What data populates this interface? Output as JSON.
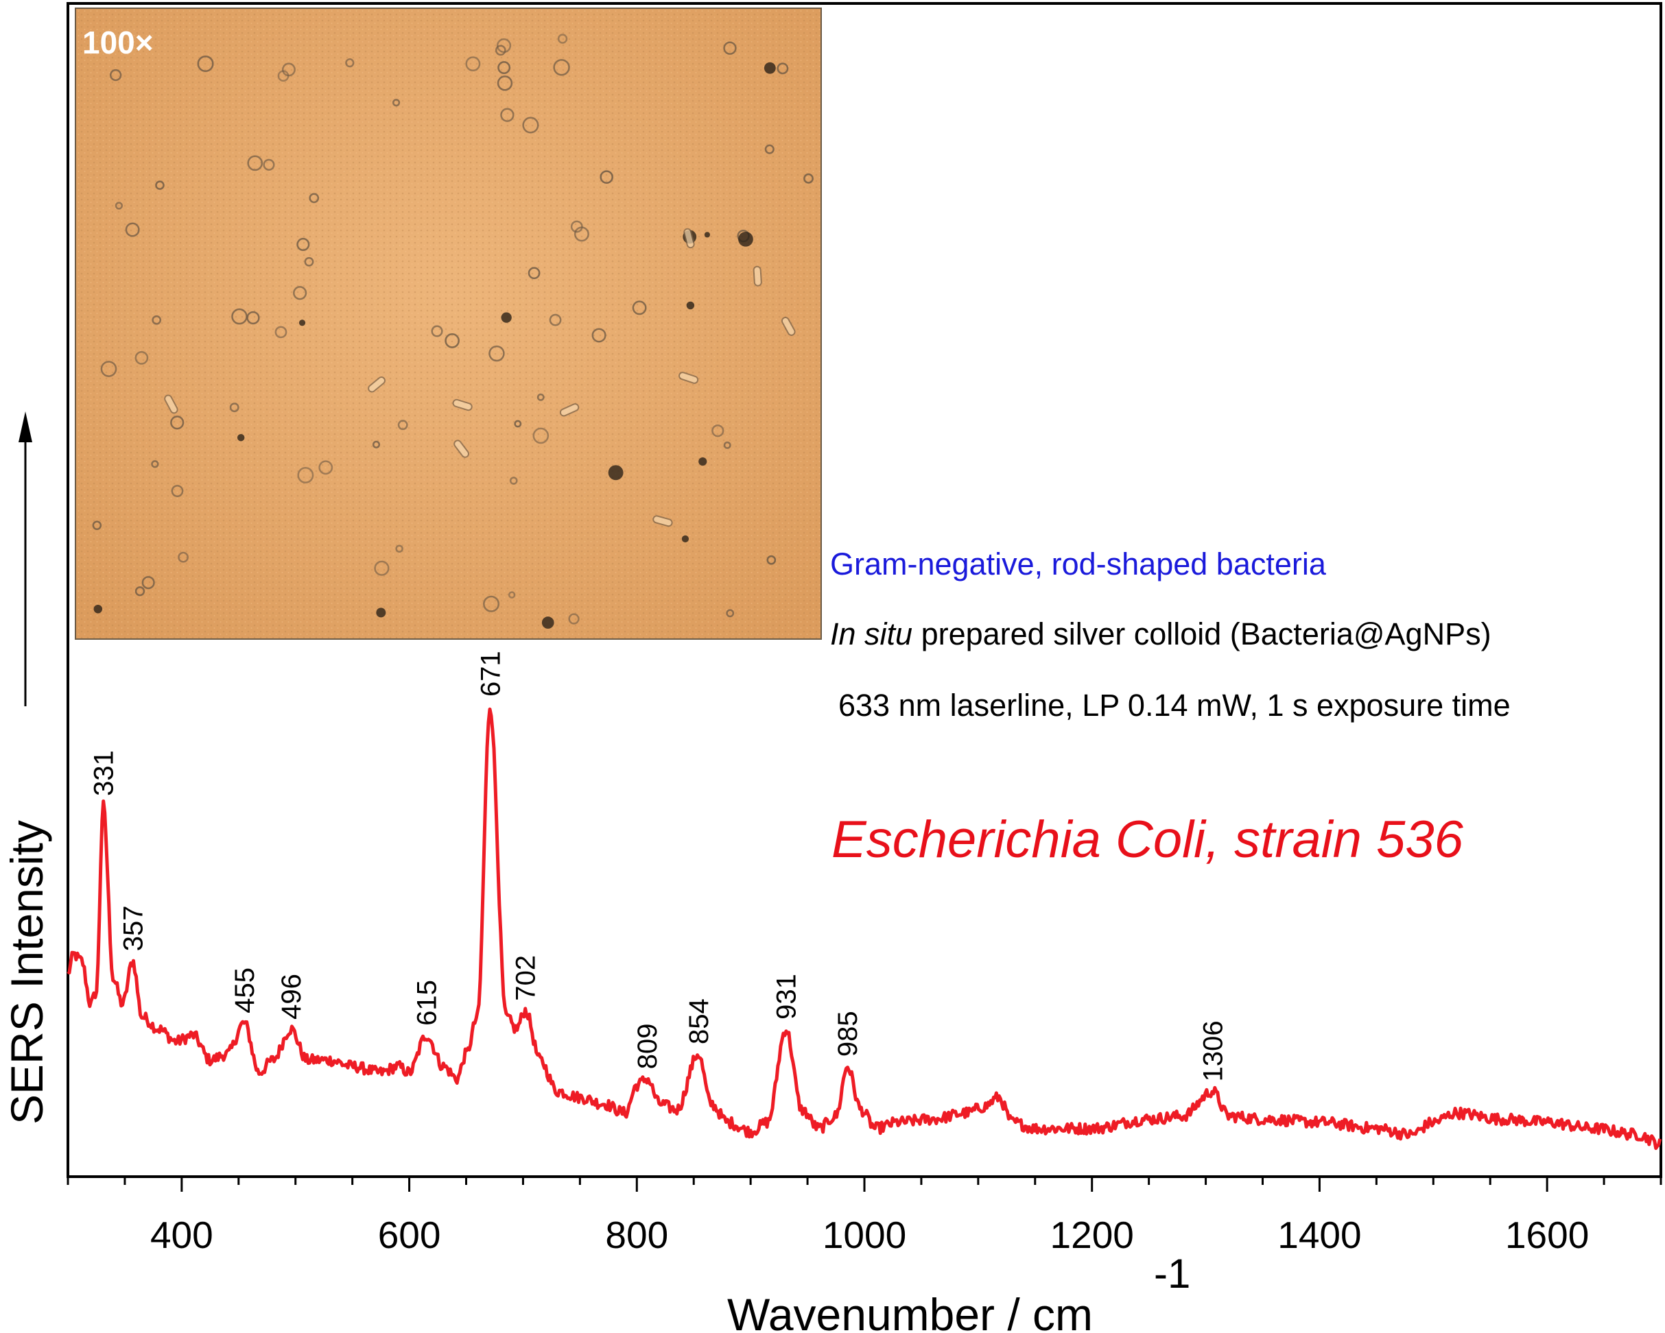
{
  "chart_data": {
    "type": "line",
    "title": "",
    "xlabel": "Wavenumber / cm",
    "xlabel_sup": "-1",
    "ylabel": "SERS Intensity",
    "xlim": [
      300,
      1700
    ],
    "ylim": [
      0,
      1
    ],
    "x_ticks": [
      400,
      600,
      800,
      1000,
      1200,
      1400,
      1600
    ],
    "x_minor_step": 50,
    "grid": false,
    "legend": "none",
    "series": [
      {
        "color": "#ee1c25",
        "anchors": [
          [
            300,
            0.31
          ],
          [
            305,
            0.34
          ],
          [
            312,
            0.33
          ],
          [
            320,
            0.26
          ],
          [
            325,
            0.28
          ],
          [
            331,
            0.58
          ],
          [
            340,
            0.3
          ],
          [
            348,
            0.26
          ],
          [
            357,
            0.33
          ],
          [
            365,
            0.24
          ],
          [
            380,
            0.22
          ],
          [
            395,
            0.2
          ],
          [
            410,
            0.21
          ],
          [
            425,
            0.17
          ],
          [
            440,
            0.18
          ],
          [
            455,
            0.23
          ],
          [
            468,
            0.15
          ],
          [
            480,
            0.17
          ],
          [
            496,
            0.22
          ],
          [
            510,
            0.17
          ],
          [
            530,
            0.17
          ],
          [
            550,
            0.16
          ],
          [
            575,
            0.15
          ],
          [
            590,
            0.16
          ],
          [
            600,
            0.15
          ],
          [
            615,
            0.21
          ],
          [
            630,
            0.16
          ],
          [
            642,
            0.14
          ],
          [
            650,
            0.18
          ],
          [
            660,
            0.24
          ],
          [
            671,
            0.74
          ],
          [
            685,
            0.24
          ],
          [
            694,
            0.22
          ],
          [
            702,
            0.25
          ],
          [
            715,
            0.17
          ],
          [
            730,
            0.12
          ],
          [
            750,
            0.11
          ],
          [
            770,
            0.1
          ],
          [
            790,
            0.085
          ],
          [
            800,
            0.13
          ],
          [
            809,
            0.14
          ],
          [
            820,
            0.1
          ],
          [
            835,
            0.09
          ],
          [
            854,
            0.18
          ],
          [
            865,
            0.1
          ],
          [
            880,
            0.07
          ],
          [
            900,
            0.055
          ],
          [
            915,
            0.07
          ],
          [
            931,
            0.22
          ],
          [
            945,
            0.09
          ],
          [
            960,
            0.06
          ],
          [
            975,
            0.08
          ],
          [
            985,
            0.16
          ],
          [
            997,
            0.09
          ],
          [
            1010,
            0.06
          ],
          [
            1030,
            0.07
          ],
          [
            1060,
            0.075
          ],
          [
            1090,
            0.085
          ],
          [
            1105,
            0.095
          ],
          [
            1118,
            0.11
          ],
          [
            1130,
            0.07
          ],
          [
            1150,
            0.06
          ],
          [
            1200,
            0.06
          ],
          [
            1250,
            0.075
          ],
          [
            1280,
            0.08
          ],
          [
            1306,
            0.12
          ],
          [
            1320,
            0.08
          ],
          [
            1350,
            0.075
          ],
          [
            1400,
            0.07
          ],
          [
            1450,
            0.06
          ],
          [
            1480,
            0.05
          ],
          [
            1500,
            0.07
          ],
          [
            1520,
            0.085
          ],
          [
            1560,
            0.075
          ],
          [
            1600,
            0.07
          ],
          [
            1640,
            0.06
          ],
          [
            1680,
            0.05
          ],
          [
            1700,
            0.035
          ]
        ]
      }
    ],
    "peak_labels": [
      {
        "x": 331,
        "y": 0.58,
        "text": "331"
      },
      {
        "x": 357,
        "y": 0.33,
        "text": "357"
      },
      {
        "x": 455,
        "y": 0.23,
        "text": "455"
      },
      {
        "x": 496,
        "y": 0.22,
        "text": "496"
      },
      {
        "x": 615,
        "y": 0.21,
        "text": "615"
      },
      {
        "x": 671,
        "y": 0.74,
        "text": "671"
      },
      {
        "x": 702,
        "y": 0.25,
        "text": "702"
      },
      {
        "x": 809,
        "y": 0.14,
        "text": "809"
      },
      {
        "x": 854,
        "y": 0.18,
        "text": "854"
      },
      {
        "x": 931,
        "y": 0.22,
        "text": "931"
      },
      {
        "x": 985,
        "y": 0.16,
        "text": "985"
      },
      {
        "x": 1306,
        "y": 0.12,
        "text": "1306"
      }
    ]
  },
  "annotations": {
    "line1": "Gram-negative, rod-shaped bacteria",
    "line2_italic": "In situ",
    "line2_rest": " prepared silver colloid (Bacteria@AgNPs)",
    "line3": "633 nm laserline, LP 0.14 mW, 1 s exposure time",
    "species": "Escherichia Coli, strain 536"
  },
  "inset": {
    "label": "100×",
    "color": "#e8a868"
  }
}
